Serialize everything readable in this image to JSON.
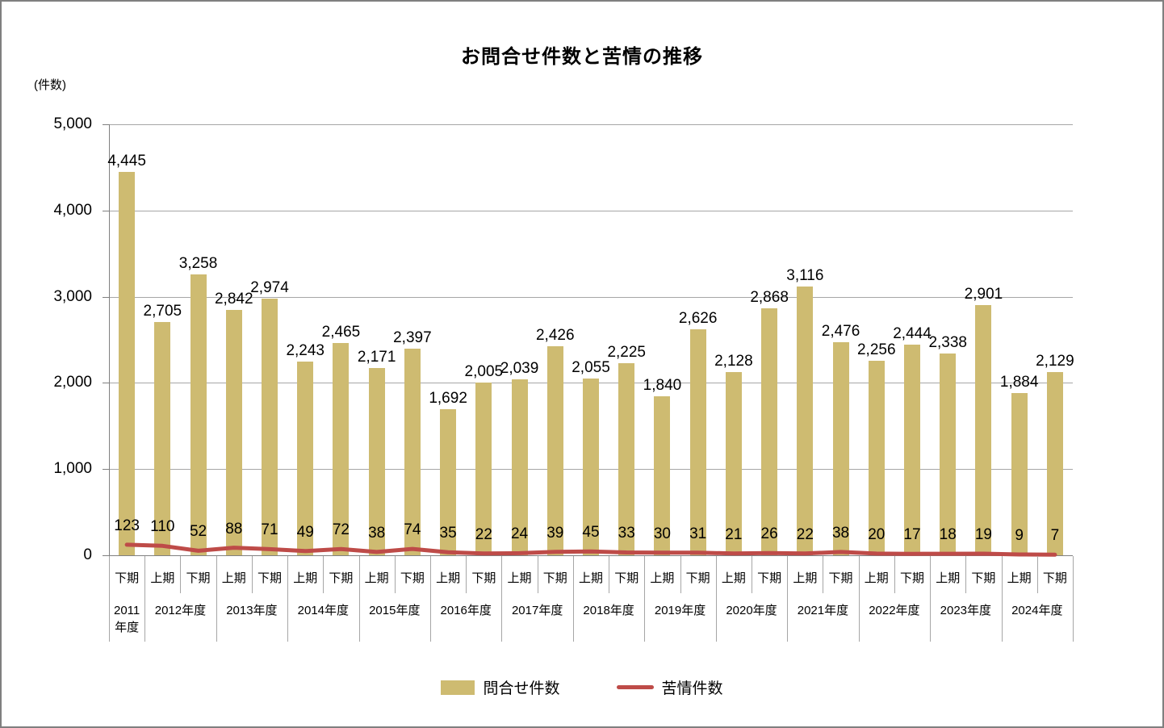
{
  "title": "お問合せ件数と苦情の推移",
  "y_axis_unit": "(件数)",
  "colors": {
    "bar": "#CEBB71",
    "line": "#BE4B48",
    "grid": "#A6A6A6",
    "axis": "#808080",
    "text": "#000000"
  },
  "legend": {
    "position": "bottom",
    "items": [
      {
        "label": "問合せ件数",
        "swatch": "bar"
      },
      {
        "label": "苦情件数",
        "swatch": "line"
      }
    ]
  },
  "chart_data": {
    "type": "combo-bar-line",
    "title": "お問合せ件数と苦情の推移",
    "ylabel": "(件数)",
    "ylim": [
      0,
      5000
    ],
    "ytick_step": 1000,
    "ytick_labels": [
      "5,000",
      "4,000",
      "3,000",
      "2,000",
      "1,000",
      "0"
    ],
    "grid": true,
    "series": [
      {
        "name": "問合せ件数",
        "type": "bar",
        "color": "#CEBB71",
        "values": [
          4445,
          2705,
          3258,
          2842,
          2974,
          2243,
          2465,
          2171,
          2397,
          1692,
          2005,
          2039,
          2426,
          2055,
          2225,
          1840,
          2626,
          2128,
          2868,
          3116,
          2476,
          2256,
          2444,
          2338,
          2901,
          1884,
          2129
        ]
      },
      {
        "name": "苦情件数",
        "type": "line",
        "color": "#BE4B48",
        "values": [
          123,
          110,
          52,
          88,
          71,
          49,
          72,
          38,
          74,
          35,
          22,
          24,
          39,
          45,
          33,
          30,
          31,
          21,
          26,
          22,
          38,
          20,
          17,
          18,
          19,
          9,
          7
        ]
      }
    ],
    "x_axis": {
      "periods": [
        "下期",
        "上期",
        "下期",
        "上期",
        "下期",
        "上期",
        "下期",
        "上期",
        "下期",
        "上期",
        "下期",
        "上期",
        "下期",
        "上期",
        "下期",
        "上期",
        "下期",
        "上期",
        "下期",
        "上期",
        "下期",
        "上期",
        "下期",
        "上期",
        "下期",
        "上期",
        "下期"
      ],
      "year_groups": [
        {
          "lines": [
            "2011",
            "年度"
          ],
          "span": 1
        },
        {
          "lines": [
            "2012年度"
          ],
          "span": 2
        },
        {
          "lines": [
            "2013年度"
          ],
          "span": 2
        },
        {
          "lines": [
            "2014年度"
          ],
          "span": 2
        },
        {
          "lines": [
            "2015年度"
          ],
          "span": 2
        },
        {
          "lines": [
            "2016年度"
          ],
          "span": 2
        },
        {
          "lines": [
            "2017年度"
          ],
          "span": 2
        },
        {
          "lines": [
            "2018年度"
          ],
          "span": 2
        },
        {
          "lines": [
            "2019年度"
          ],
          "span": 2
        },
        {
          "lines": [
            "2020年度"
          ],
          "span": 2
        },
        {
          "lines": [
            "2021年度"
          ],
          "span": 2
        },
        {
          "lines": [
            "2022年度"
          ],
          "span": 2
        },
        {
          "lines": [
            "2023年度"
          ],
          "span": 2
        },
        {
          "lines": [
            "2024年度"
          ],
          "span": 2
        }
      ]
    }
  }
}
